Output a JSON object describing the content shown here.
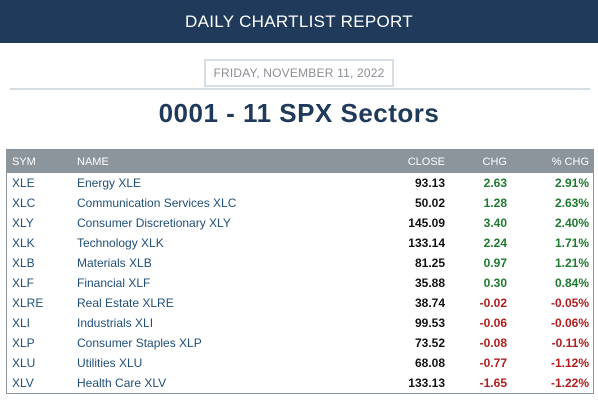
{
  "header": {
    "title": "DAILY CHARTLIST REPORT"
  },
  "date": "FRIDAY, NOVEMBER 11, 2022",
  "list_title": "0001 - 11 SPX Sectors",
  "columns": {
    "sym": "SYM",
    "name": "NAME",
    "close": "CLOSE",
    "chg": "CHG",
    "pct": "% CHG"
  },
  "colors": {
    "positive": "#1e7a2e",
    "negative": "#b01e1e",
    "header_bg": "#1f3a5a"
  },
  "rows": [
    {
      "sym": "XLE",
      "name": "Energy XLE",
      "close": "93.13",
      "chg": "2.63",
      "pct": "2.91%",
      "dir": "pos"
    },
    {
      "sym": "XLC",
      "name": "Communication Services XLC",
      "close": "50.02",
      "chg": "1.28",
      "pct": "2.63%",
      "dir": "pos"
    },
    {
      "sym": "XLY",
      "name": "Consumer Discretionary XLY",
      "close": "145.09",
      "chg": "3.40",
      "pct": "2.40%",
      "dir": "pos"
    },
    {
      "sym": "XLK",
      "name": "Technology XLK",
      "close": "133.14",
      "chg": "2.24",
      "pct": "1.71%",
      "dir": "pos"
    },
    {
      "sym": "XLB",
      "name": "Materials XLB",
      "close": "81.25",
      "chg": "0.97",
      "pct": "1.21%",
      "dir": "pos"
    },
    {
      "sym": "XLF",
      "name": "Financial XLF",
      "close": "35.88",
      "chg": "0.30",
      "pct": "0.84%",
      "dir": "pos"
    },
    {
      "sym": "XLRE",
      "name": "Real Estate XLRE",
      "close": "38.74",
      "chg": "-0.02",
      "pct": "-0.05%",
      "dir": "neg"
    },
    {
      "sym": "XLI",
      "name": "Industrials XLI",
      "close": "99.53",
      "chg": "-0.06",
      "pct": "-0.06%",
      "dir": "neg"
    },
    {
      "sym": "XLP",
      "name": "Consumer Staples XLP",
      "close": "73.52",
      "chg": "-0.08",
      "pct": "-0.11%",
      "dir": "neg"
    },
    {
      "sym": "XLU",
      "name": "Utilities XLU",
      "close": "68.08",
      "chg": "-0.77",
      "pct": "-1.12%",
      "dir": "neg"
    },
    {
      "sym": "XLV",
      "name": "Health Care XLV",
      "close": "133.13",
      "chg": "-1.65",
      "pct": "-1.22%",
      "dir": "neg"
    }
  ]
}
